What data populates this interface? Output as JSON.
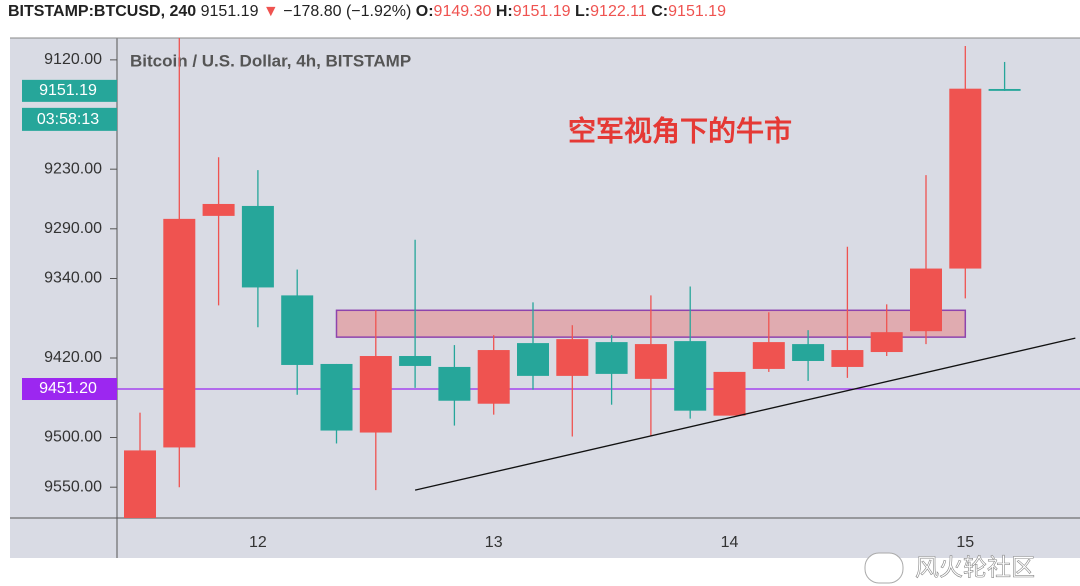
{
  "chart_data": {
    "type": "candlestick",
    "header": {
      "symbol": "BITSTAMP:BTCUSD, 240",
      "last": "9151.19",
      "arrow": "▼",
      "change": "−178.80 (−1.92%)",
      "o_label": "O:",
      "o": "9149.30",
      "h_label": "H:",
      "h": "9151.19",
      "l_label": "L:",
      "l": "9122.11",
      "c_label": "C:",
      "c": "9151.19"
    },
    "legend_text": "Bitcoin / U.S. Dollar, 4h, BITSTAMP",
    "annotation": "空军视角下的牛市",
    "watermark": "风火轮社区",
    "categories": [
      null,
      null,
      null,
      "12",
      null,
      null,
      null,
      null,
      null,
      "13",
      null,
      null,
      null,
      null,
      null,
      "14",
      null,
      null,
      null,
      null,
      null,
      "15",
      null
    ],
    "open": [
      9581,
      9510,
      9277,
      9267,
      9357,
      9426,
      9495,
      9418,
      9429,
      9466,
      9405,
      9438,
      9404,
      9441,
      9403,
      9478,
      9431,
      9406,
      9429,
      9414,
      9393,
      9330,
      9149.3
    ],
    "high": [
      9581,
      9550,
      9367,
      9389,
      9457,
      9506,
      9553,
      9450,
      9488,
      9477,
      9452,
      9499,
      9467,
      9499,
      9481,
      9478,
      9434,
      9443,
      9440,
      9418,
      9406,
      9360,
      9151.19
    ],
    "low": [
      9475,
      9098,
      9218,
      9231,
      9331,
      9426,
      9372,
      9301,
      9407,
      9397,
      9364,
      9387,
      9397,
      9357,
      9348,
      9434,
      9374,
      9392,
      9308,
      9366,
      9236,
      9106,
      9122.11
    ],
    "close": [
      9513,
      9280,
      9265,
      9349,
      9427,
      9493,
      9418,
      9428,
      9463,
      9412,
      9438,
      9401,
      9436,
      9406,
      9473,
      9434,
      9404,
      9423,
      9412,
      9394,
      9330,
      9149,
      9151.19
    ],
    "up_color": "#26a69a",
    "down_color": "#ef5350",
    "ylim": [
      9098,
      9581
    ],
    "inverted": true,
    "yticks": [
      {
        "value": 9120,
        "label": "9120.00"
      },
      {
        "value": 9230,
        "label": "9230.00"
      },
      {
        "value": 9290,
        "label": "9290.00"
      },
      {
        "value": 9340,
        "label": "9340.00"
      },
      {
        "value": 9420,
        "label": "9420.00"
      },
      {
        "value": 9500,
        "label": "9500.00"
      },
      {
        "value": 9550,
        "label": "9550.00"
      }
    ],
    "price_badge": {
      "value": 9151.19,
      "label": "9151.19",
      "countdown": "03:58:13",
      "color": "#26a69a"
    },
    "hline": {
      "value": 9451.2,
      "label": "9451.20",
      "color": "#9c27f0"
    },
    "zone": {
      "x": [
        5,
        21
      ],
      "y": [
        9372,
        9399
      ]
    },
    "trendline": {
      "x": [
        7,
        23.8
      ],
      "y": [
        9553,
        9400
      ]
    },
    "grid": false
  }
}
